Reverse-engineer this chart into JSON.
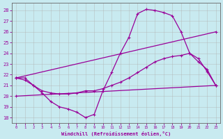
{
  "background_color": "#c8eaf0",
  "grid_color": "#b0b0b0",
  "line_color": "#990099",
  "xlim": [
    -0.5,
    23.5
  ],
  "ylim": [
    17.5,
    28.7
  ],
  "yticks": [
    18,
    19,
    20,
    21,
    22,
    23,
    24,
    25,
    26,
    27,
    28
  ],
  "xticks": [
    0,
    1,
    2,
    3,
    4,
    5,
    6,
    7,
    8,
    9,
    10,
    11,
    12,
    13,
    14,
    15,
    16,
    17,
    18,
    19,
    20,
    21,
    22,
    23
  ],
  "xlabel": "Windchill (Refroidissement éolien,°C)",
  "line1_x": [
    0,
    1,
    2,
    3,
    4,
    5,
    6,
    7,
    8,
    9,
    10,
    11,
    12,
    13,
    14,
    15,
    16,
    17,
    18,
    19,
    20,
    21,
    22,
    23
  ],
  "line1_y": [
    21.7,
    21.7,
    21.0,
    20.3,
    19.5,
    19.0,
    18.8,
    18.5,
    18.0,
    18.3,
    20.5,
    22.2,
    24.0,
    25.5,
    27.7,
    28.1,
    28.0,
    27.8,
    27.5,
    26.0,
    24.0,
    23.2,
    22.5,
    21.0
  ],
  "line2_x": [
    0,
    23
  ],
  "line2_y": [
    21.7,
    26.0
  ],
  "line3_x": [
    0,
    23
  ],
  "line3_y": [
    20.0,
    21.0
  ],
  "line4_x": [
    0,
    1,
    2,
    3,
    4,
    5,
    6,
    7,
    8,
    9,
    10,
    11,
    12,
    13,
    14,
    15,
    16,
    17,
    18,
    19,
    20,
    21,
    22,
    23
  ],
  "line4_y": [
    21.7,
    21.5,
    21.0,
    20.5,
    20.3,
    20.2,
    20.2,
    20.3,
    20.5,
    20.5,
    20.7,
    21.0,
    21.3,
    21.7,
    22.2,
    22.7,
    23.2,
    23.5,
    23.7,
    23.8,
    24.0,
    23.5,
    22.3,
    21.0
  ]
}
